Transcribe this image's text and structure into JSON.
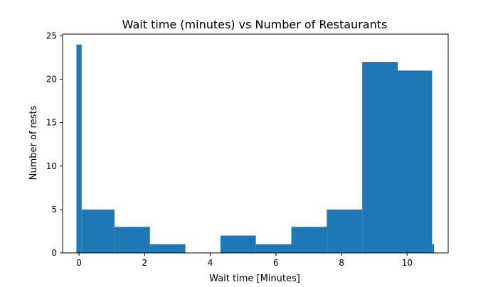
{
  "chart_data": {
    "type": "bar",
    "title": "Wait time (minutes) vs Number of Restaurants",
    "xlabel": "Wait time [Minutes]",
    "ylabel": "Number of rests",
    "xlim": [
      -0.5,
      11.25
    ],
    "ylim": [
      0,
      25.2
    ],
    "xticks": [
      0,
      2,
      4,
      6,
      8,
      10
    ],
    "yticks": [
      0,
      5,
      10,
      15,
      20,
      25
    ],
    "grid": false,
    "bars": [
      {
        "x0": -0.08,
        "x1": 0.08,
        "value": 24
      },
      {
        "x0": 0.08,
        "x1": 1.08,
        "value": 5
      },
      {
        "x0": 1.08,
        "x1": 2.16,
        "value": 3
      },
      {
        "x0": 2.16,
        "x1": 3.24,
        "value": 1
      },
      {
        "x0": 4.31,
        "x1": 5.39,
        "value": 2
      },
      {
        "x0": 5.39,
        "x1": 6.47,
        "value": 1
      },
      {
        "x0": 6.47,
        "x1": 7.55,
        "value": 3
      },
      {
        "x0": 7.55,
        "x1": 8.63,
        "value": 5
      },
      {
        "x0": 8.63,
        "x1": 9.71,
        "value": 22
      },
      {
        "x0": 9.71,
        "x1": 10.76,
        "value": 21
      },
      {
        "x0": 10.76,
        "x1": 10.82,
        "value": 1
      }
    ],
    "colors": {
      "bar": "#1f77b4",
      "axis": "#000000",
      "background": "#ffffff"
    }
  }
}
